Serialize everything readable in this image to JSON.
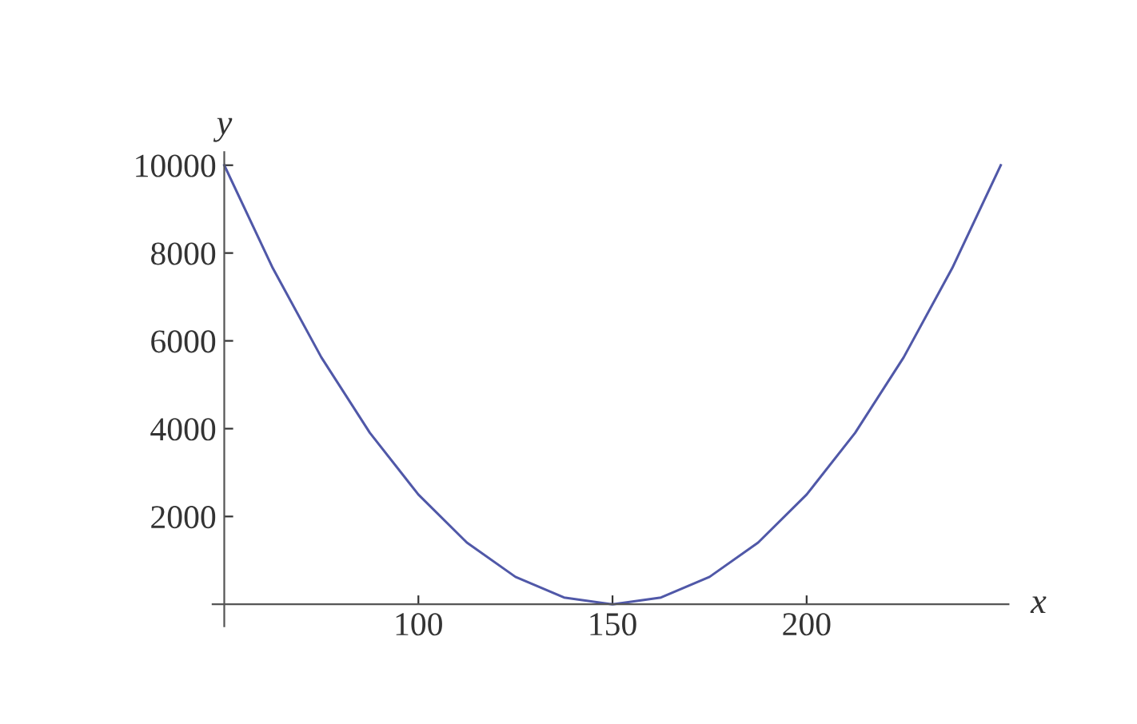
{
  "chart_data": {
    "type": "line",
    "xlabel": "x",
    "ylabel": "y",
    "x": [
      50,
      62.5,
      75,
      87.5,
      100,
      112.5,
      125,
      137.5,
      150,
      162.5,
      175,
      187.5,
      200,
      212.5,
      225,
      237.5,
      250
    ],
    "series": [
      {
        "color": "#5058a8",
        "values": [
          10000,
          7656,
          5625,
          3906,
          2500,
          1406,
          625,
          156,
          0,
          156,
          625,
          1406,
          2500,
          3906,
          5625,
          7656,
          10000
        ]
      }
    ],
    "xlim": [
      47,
      252
    ],
    "ylim": [
      -500,
      10300
    ],
    "xticks": [
      100,
      150,
      200
    ],
    "yticks": [
      2000,
      4000,
      6000,
      8000,
      10000
    ],
    "grid": false,
    "marker": "none",
    "line_style": "solid"
  }
}
